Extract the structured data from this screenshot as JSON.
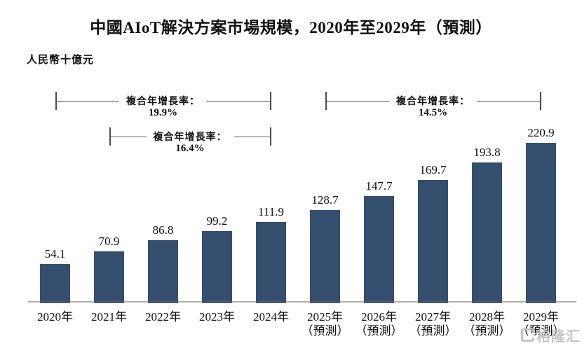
{
  "title": "中國AIoT解決方案市場規模，2020年至2029年（預測）",
  "unit_label": "人民幣十億元",
  "watermark": {
    "text": "格隆汇"
  },
  "colors": {
    "bar": "#344F6E",
    "axis_line": "#696969",
    "bracket_line": "#4D4D4D",
    "text": "#111111",
    "watermark": "#BCBEC2"
  },
  "chart_data": {
    "type": "bar",
    "title": "中國AIoT解決方案市場規模，2020年至2029年（預測）",
    "ylabel": "人民幣十億元",
    "xlabel": "",
    "categories": [
      "2020年",
      "2021年",
      "2022年",
      "2023年",
      "2024年",
      "2025年",
      "2026年",
      "2027年",
      "2028年",
      "2029年"
    ],
    "category_notes": [
      "",
      "",
      "",
      "",
      "",
      "（預測）",
      "（預測）",
      "（預測）",
      "（預測）",
      "（預測）"
    ],
    "values": [
      54.1,
      70.9,
      86.8,
      99.2,
      111.9,
      128.7,
      147.7,
      169.7,
      193.8,
      220.9
    ],
    "ylim": [
      0,
      240
    ],
    "grid": false,
    "legend": false,
    "annotations": [
      {
        "label": "複合年增長率：",
        "value": "19.9%",
        "from_index": 0,
        "to_index": 4,
        "row": 0
      },
      {
        "label": "複合年增長率：",
        "value": "16.4%",
        "from_index": 1,
        "to_index": 4,
        "row": 1
      },
      {
        "label": "複合年增長率：",
        "value": "14.5%",
        "from_index": 5,
        "to_index": 9,
        "row": 0
      }
    ]
  }
}
